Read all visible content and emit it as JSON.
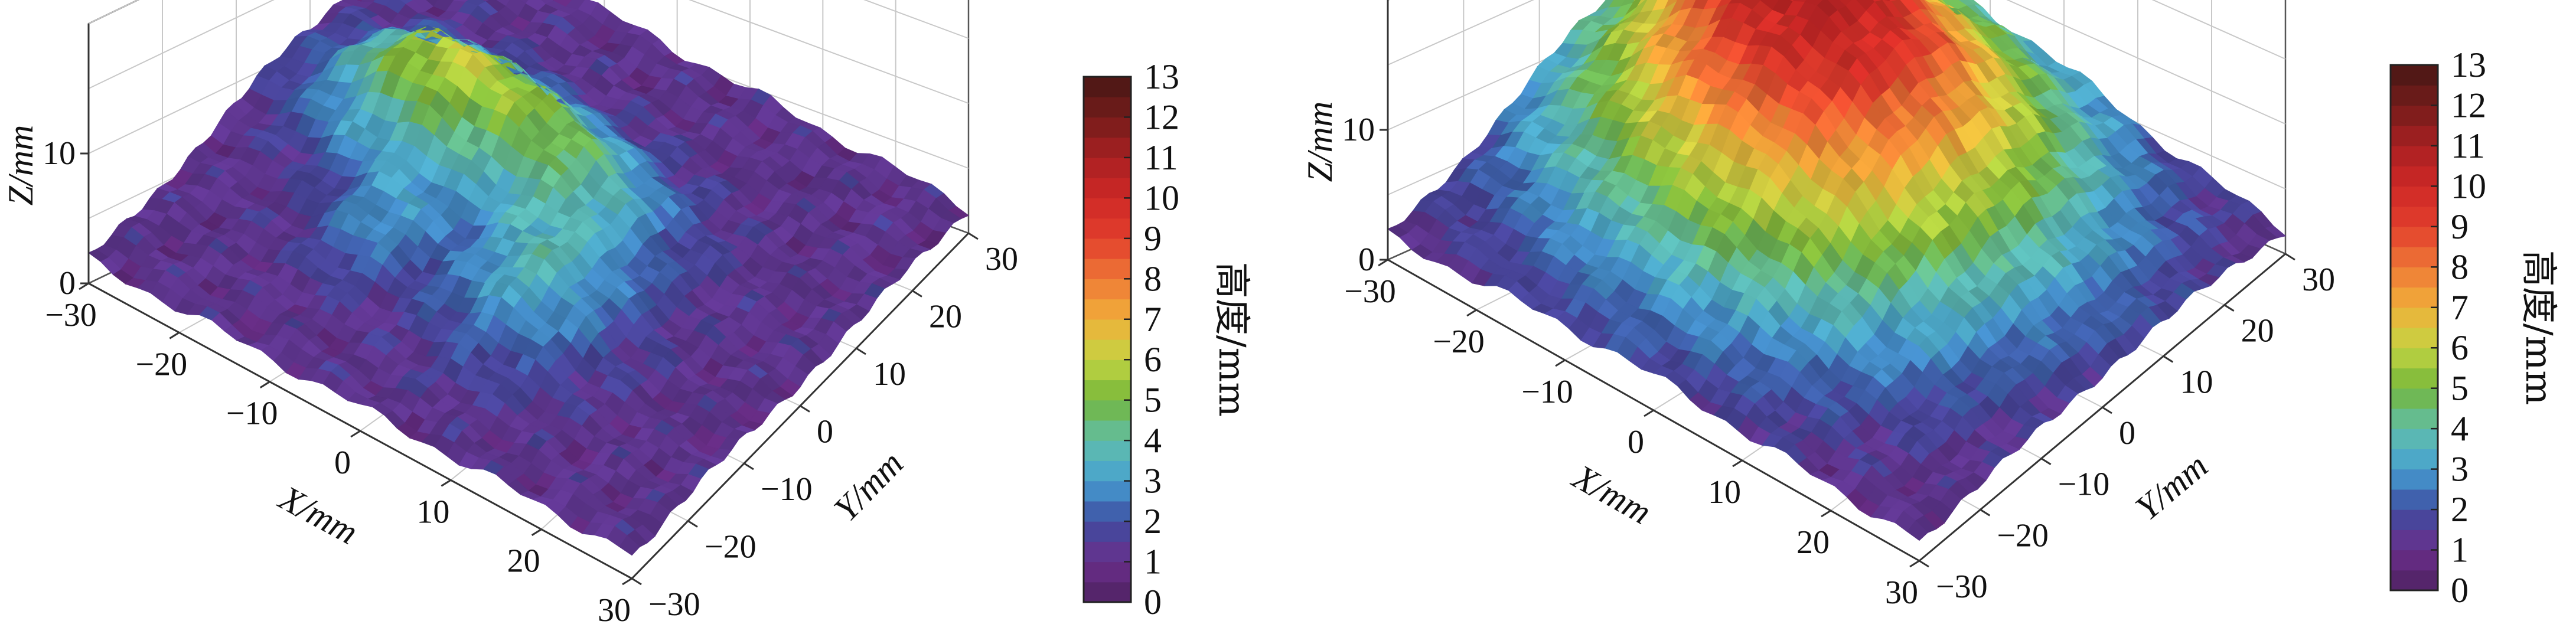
{
  "chart_data": [
    {
      "type": "surface3d",
      "xlabel": "X/mm",
      "ylabel": "Y/mm",
      "zlabel": "Z/mm",
      "x_ticks": [
        "−30",
        "−20",
        "−10",
        "0",
        "10",
        "20",
        "30"
      ],
      "y_ticks": [
        "−30",
        "−20",
        "−10",
        "0",
        "10",
        "20",
        "30"
      ],
      "z_ticks": [
        "0",
        "10"
      ],
      "xlim": [
        -30,
        30
      ],
      "ylim": [
        -30,
        30
      ],
      "zlim": [
        0,
        13
      ],
      "colorbar": {
        "label": "高度/mm",
        "ticks": [
          "0",
          "1",
          "2",
          "3",
          "4",
          "5",
          "6",
          "7",
          "8",
          "9",
          "10",
          "11",
          "12",
          "13"
        ],
        "range": [
          0,
          13
        ]
      },
      "surface": {
        "base": 1.2,
        "bumps": [
          {
            "x": -15,
            "y": 5,
            "sx": 10,
            "sy": 9,
            "h": 3.4
          },
          {
            "x": -2,
            "y": 6,
            "sx": 12,
            "sy": 8,
            "h": 3.2
          },
          {
            "x": 6,
            "y": -8,
            "sx": 8,
            "sy": 10,
            "h": 2.4
          },
          {
            "x": -10,
            "y": -10,
            "sx": 6,
            "sy": 7,
            "h": 1.5
          }
        ]
      }
    },
    {
      "type": "surface3d",
      "xlabel": "X/mm",
      "ylabel": "Y/mm",
      "zlabel": "Z/mm",
      "x_ticks": [
        "−30",
        "−20",
        "−10",
        "0",
        "10",
        "20",
        "30"
      ],
      "y_ticks": [
        "−30",
        "−20",
        "−10",
        "0",
        "10",
        "20",
        "30"
      ],
      "z_ticks": [
        "0",
        "10"
      ],
      "xlim": [
        -30,
        30
      ],
      "ylim": [
        -30,
        30
      ],
      "zlim": [
        0,
        13
      ],
      "colorbar": {
        "label": "高度/mm",
        "ticks": [
          "0",
          "1",
          "2",
          "3",
          "4",
          "5",
          "6",
          "7",
          "8",
          "9",
          "10",
          "11",
          "12",
          "13"
        ],
        "range": [
          0,
          13
        ]
      },
      "surface": {
        "base": 1.0,
        "bumps": [
          {
            "x": -5,
            "y": 5,
            "sx": 22,
            "sy": 22,
            "h": 9.5
          },
          {
            "x": -18,
            "y": 12,
            "sx": 8,
            "sy": 8,
            "h": 3.0
          }
        ]
      }
    }
  ]
}
